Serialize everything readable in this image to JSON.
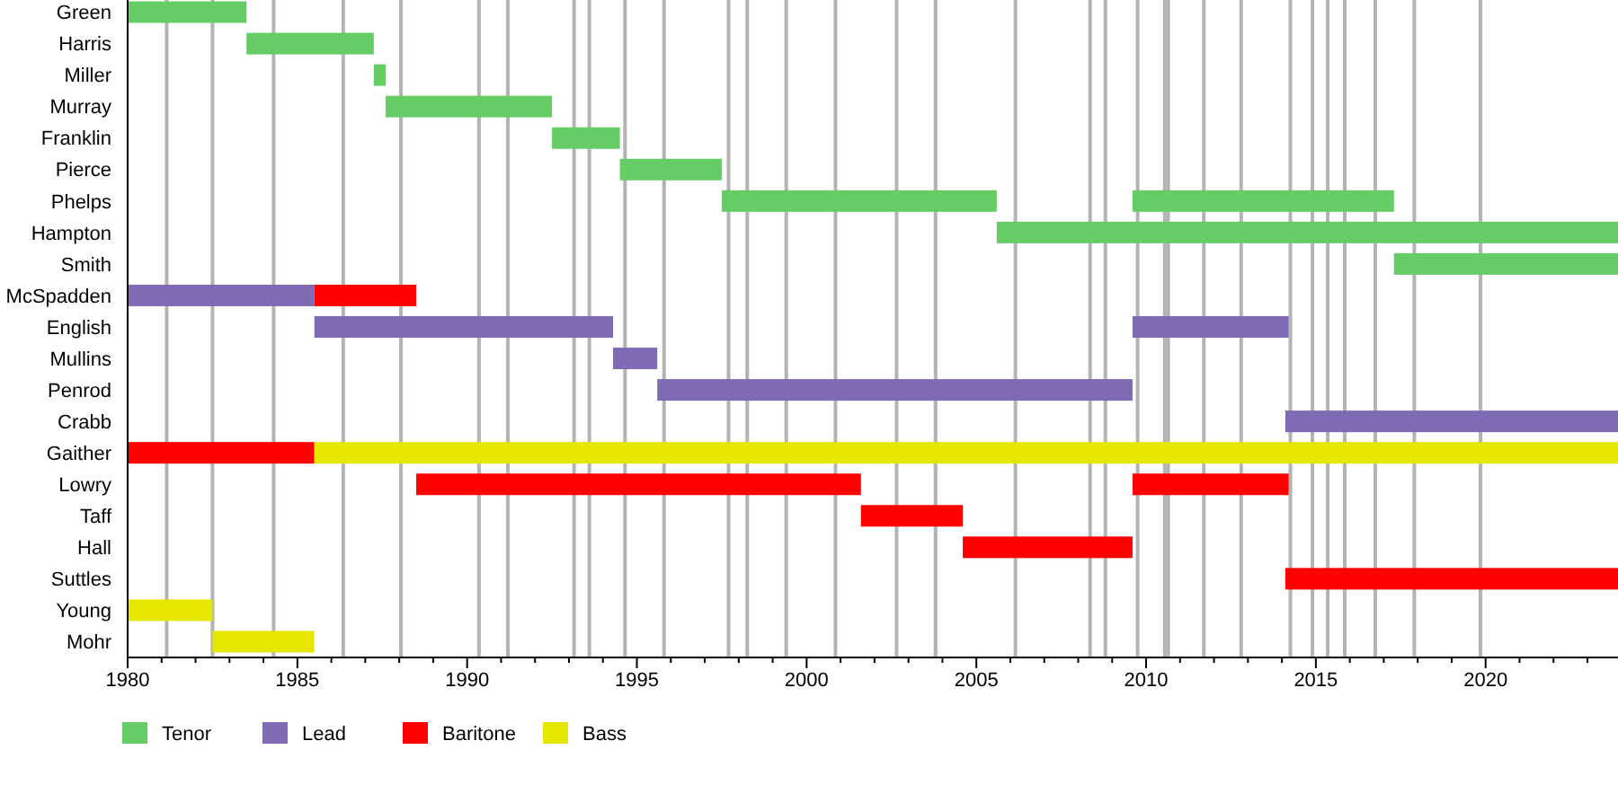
{
  "chart_data": {
    "type": "bar",
    "orientation": "horizontal",
    "categories": [
      "Green",
      "Harris",
      "Miller",
      "Murray",
      "Franklin",
      "Pierce",
      "Phelps",
      "Hampton",
      "Smith",
      "McSpadden",
      "English",
      "Mullins",
      "Penrod",
      "Crabb",
      "Gaither",
      "Lowry",
      "Taff",
      "Hall",
      "Suttles",
      "Young",
      "Mohr"
    ],
    "series": [
      {
        "name": "Tenor",
        "color": "#66cc66",
        "base": [
          1980,
          1983.5,
          1987.25,
          1987.6,
          1992.5,
          1994.5,
          1997.5,
          2005.6,
          2017.3,
          null,
          null,
          null,
          null,
          null,
          null,
          null,
          null,
          null,
          null,
          null,
          null
        ],
        "values": [
          3.5,
          3.75,
          0.35,
          4.9,
          2.0,
          3.0,
          8.1,
          18.3,
          6.6,
          null,
          null,
          null,
          null,
          null,
          null,
          null,
          null,
          null,
          null,
          null,
          null
        ]
      },
      {
        "color": "#66cc66",
        "base": [
          null,
          null,
          null,
          null,
          null,
          null,
          2009.6,
          null,
          null,
          null,
          null,
          null,
          null,
          null,
          null,
          null,
          null,
          null,
          null,
          null,
          null
        ],
        "values": [
          null,
          null,
          null,
          null,
          null,
          null,
          7.7,
          null,
          null,
          null,
          null,
          null,
          null,
          null,
          null,
          null,
          null,
          null,
          null,
          null,
          null
        ]
      },
      {
        "name": "Lead",
        "color": "#7f6bb3",
        "base": [
          null,
          null,
          null,
          null,
          null,
          null,
          null,
          null,
          null,
          1980,
          1985.5,
          1994.3,
          1995.6,
          2014.1,
          null,
          null,
          null,
          null,
          null,
          null,
          null
        ],
        "values": [
          null,
          null,
          null,
          null,
          null,
          null,
          null,
          null,
          null,
          5.5,
          8.8,
          1.3,
          14.0,
          9.8,
          null,
          null,
          null,
          null,
          null,
          null,
          null
        ]
      },
      {
        "color": "#7f6bb3",
        "base": [
          null,
          null,
          null,
          null,
          null,
          null,
          null,
          null,
          null,
          null,
          2009.6,
          null,
          null,
          null,
          null,
          null,
          null,
          null,
          null,
          null,
          null
        ],
        "values": [
          null,
          null,
          null,
          null,
          null,
          null,
          null,
          null,
          null,
          null,
          4.6,
          null,
          null,
          null,
          null,
          null,
          null,
          null,
          null,
          null,
          null
        ]
      },
      {
        "name": "Baritone",
        "color": "#ff0000",
        "base": [
          null,
          null,
          null,
          null,
          null,
          null,
          null,
          null,
          null,
          1985.5,
          null,
          null,
          null,
          null,
          1980,
          1988.5,
          2001.6,
          2004.6,
          2014.1,
          null,
          null
        ],
        "values": [
          null,
          null,
          null,
          null,
          null,
          null,
          null,
          null,
          null,
          3.0,
          null,
          null,
          null,
          null,
          5.5,
          13.1,
          3.0,
          5.0,
          9.8,
          null,
          null
        ]
      },
      {
        "color": "#ff0000",
        "base": [
          null,
          null,
          null,
          null,
          null,
          null,
          null,
          null,
          null,
          null,
          null,
          null,
          null,
          null,
          null,
          2009.6,
          null,
          null,
          null,
          null,
          null
        ],
        "values": [
          null,
          null,
          null,
          null,
          null,
          null,
          null,
          null,
          null,
          null,
          null,
          null,
          null,
          null,
          null,
          4.6,
          null,
          null,
          null,
          null,
          null
        ]
      },
      {
        "name": "Bass",
        "color": "#e6e600",
        "base": [
          null,
          null,
          null,
          null,
          null,
          null,
          null,
          null,
          null,
          null,
          null,
          null,
          null,
          null,
          1985.5,
          null,
          null,
          null,
          null,
          1980,
          1982.5
        ],
        "values": [
          null,
          null,
          null,
          null,
          null,
          null,
          null,
          null,
          null,
          null,
          null,
          null,
          null,
          null,
          38.4,
          null,
          null,
          null,
          null,
          2.5,
          3.0
        ]
      }
    ],
    "xlim": [
      1980,
      2023.9
    ],
    "xticks": [
      1980,
      {
        "value": 1981,
        "label": null
      },
      {
        "value": 1982,
        "label": null
      },
      {
        "value": 1983,
        "label": null
      },
      {
        "value": 1984,
        "label": null
      },
      1985,
      {
        "value": 1986,
        "label": null
      },
      {
        "value": 1987,
        "label": null
      },
      {
        "value": 1988,
        "label": null
      },
      {
        "value": 1989,
        "label": null
      },
      1990,
      {
        "value": 1991,
        "label": null
      },
      {
        "value": 1992,
        "label": null
      },
      {
        "value": 1993,
        "label": null
      },
      {
        "value": 1994,
        "label": null
      },
      1995,
      {
        "value": 1996,
        "label": null
      },
      {
        "value": 1997,
        "label": null
      },
      {
        "value": 1998,
        "label": null
      },
      {
        "value": 1999,
        "label": null
      },
      2000,
      {
        "value": 2001,
        "label": null
      },
      {
        "value": 2002,
        "label": null
      },
      {
        "value": 2003,
        "label": null
      },
      {
        "value": 2004,
        "label": null
      },
      2005,
      {
        "value": 2006,
        "label": null
      },
      {
        "value": 2007,
        "label": null
      },
      {
        "value": 2008,
        "label": null
      },
      {
        "value": 2009,
        "label": null
      },
      2010,
      {
        "value": 2011,
        "label": null
      },
      {
        "value": 2012,
        "label": null
      },
      {
        "value": 2013,
        "label": null
      },
      {
        "value": 2014,
        "label": null
      },
      2015,
      {
        "value": 2016,
        "label": null
      },
      {
        "value": 2017,
        "label": null
      },
      {
        "value": 2018,
        "label": null
      },
      {
        "value": 2019,
        "label": null
      },
      2020,
      {
        "value": 2021,
        "label": null
      },
      {
        "value": 2022,
        "label": null
      },
      {
        "value": 2023,
        "label": null
      }
    ],
    "ref_lines": [
      {
        "axis": "x",
        "value": 1981.15,
        "color": "#b3b3b3"
      },
      {
        "axis": "x",
        "value": 1982.5,
        "color": "#b3b3b3"
      },
      {
        "axis": "x",
        "value": 1984.3,
        "color": "#b3b3b3"
      },
      {
        "axis": "x",
        "value": 1986.35,
        "color": "#b3b3b3"
      },
      {
        "axis": "x",
        "value": 1988.05,
        "color": "#b3b3b3"
      },
      {
        "axis": "x",
        "value": 1990.35,
        "color": "#b3b3b3"
      },
      {
        "axis": "x",
        "value": 1991.2,
        "color": "#b3b3b3"
      },
      {
        "axis": "x",
        "value": 1993.15,
        "color": "#b3b3b3"
      },
      {
        "axis": "x",
        "value": 1993.6,
        "color": "#b3b3b3"
      },
      {
        "axis": "x",
        "value": 1994.65,
        "color": "#b3b3b3"
      },
      {
        "axis": "x",
        "value": 1995.8,
        "color": "#b3b3b3"
      },
      {
        "axis": "x",
        "value": 1997.7,
        "color": "#b3b3b3"
      },
      {
        "axis": "x",
        "value": 1998.25,
        "color": "#b3b3b3"
      },
      {
        "axis": "x",
        "value": 1999.4,
        "color": "#b3b3b3"
      },
      {
        "axis": "x",
        "value": 2000.85,
        "color": "#b3b3b3"
      },
      {
        "axis": "x",
        "value": 2002.65,
        "color": "#b3b3b3"
      },
      {
        "axis": "x",
        "value": 2003.8,
        "color": "#b3b3b3"
      },
      {
        "axis": "x",
        "value": 2006.15,
        "color": "#b3b3b3"
      },
      {
        "axis": "x",
        "value": 2008.35,
        "color": "#b3b3b3"
      },
      {
        "axis": "x",
        "value": 2008.8,
        "color": "#b3b3b3"
      },
      {
        "axis": "x",
        "value": 2009.75,
        "color": "#b3b3b3"
      },
      {
        "axis": "x",
        "value": 2010.55,
        "color": "#b3b3b3"
      },
      {
        "axis": "x",
        "value": 2010.65,
        "color": "#b3b3b3"
      },
      {
        "axis": "x",
        "value": 2011.7,
        "color": "#b3b3b3"
      },
      {
        "axis": "x",
        "value": 2012.8,
        "color": "#b3b3b3"
      },
      {
        "axis": "x",
        "value": 2014.25,
        "color": "#b3b3b3"
      },
      {
        "axis": "x",
        "value": 2014.9,
        "color": "#b3b3b3"
      },
      {
        "axis": "x",
        "value": 2015.35,
        "color": "#b3b3b3"
      },
      {
        "axis": "x",
        "value": 2015.85,
        "color": "#b3b3b3"
      },
      {
        "axis": "x",
        "value": 2016.75,
        "color": "#b3b3b3"
      },
      {
        "axis": "x",
        "value": 2017.9,
        "color": "#b3b3b3"
      },
      {
        "axis": "x",
        "value": 2019.85,
        "color": "#b3b3b3"
      }
    ],
    "legend": "bottom left"
  }
}
